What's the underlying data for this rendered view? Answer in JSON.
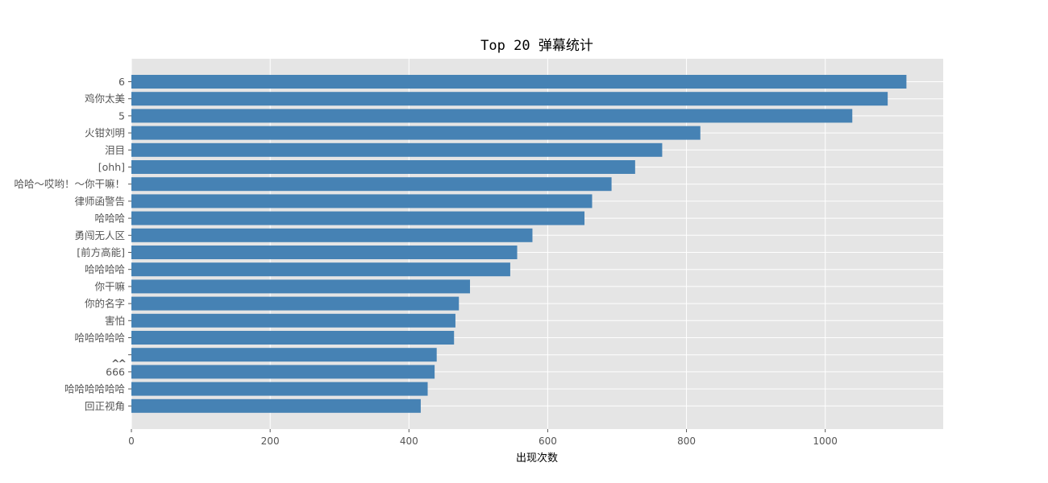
{
  "chart_data": {
    "type": "bar",
    "orientation": "horizontal",
    "title": "Top 20 弹幕统计",
    "xlabel": "出现次数",
    "ylabel": "",
    "xlim": [
      0,
      1170
    ],
    "xticks": [
      0,
      200,
      400,
      600,
      800,
      1000
    ],
    "grid": true,
    "categories": [
      "6",
      "鸡你太美",
      "5",
      "火钳刘明",
      "泪目",
      "[ohh]",
      "哈哈～哎哟！～你干嘛！",
      "律师函警告",
      "哈哈哈",
      "勇闯无人区",
      "[前方高能]",
      "哈哈哈哈",
      "你干嘛",
      "你的名字",
      "害怕",
      "哈哈哈哈哈",
      "^^",
      "666",
      "哈哈哈哈哈哈",
      "回正视角"
    ],
    "values": [
      1117,
      1090,
      1039,
      820,
      765,
      726,
      692,
      664,
      653,
      578,
      556,
      546,
      488,
      472,
      467,
      465,
      440,
      437,
      427,
      417
    ],
    "bar_color": "#4682b4",
    "background_color": "#e5e5e5"
  }
}
